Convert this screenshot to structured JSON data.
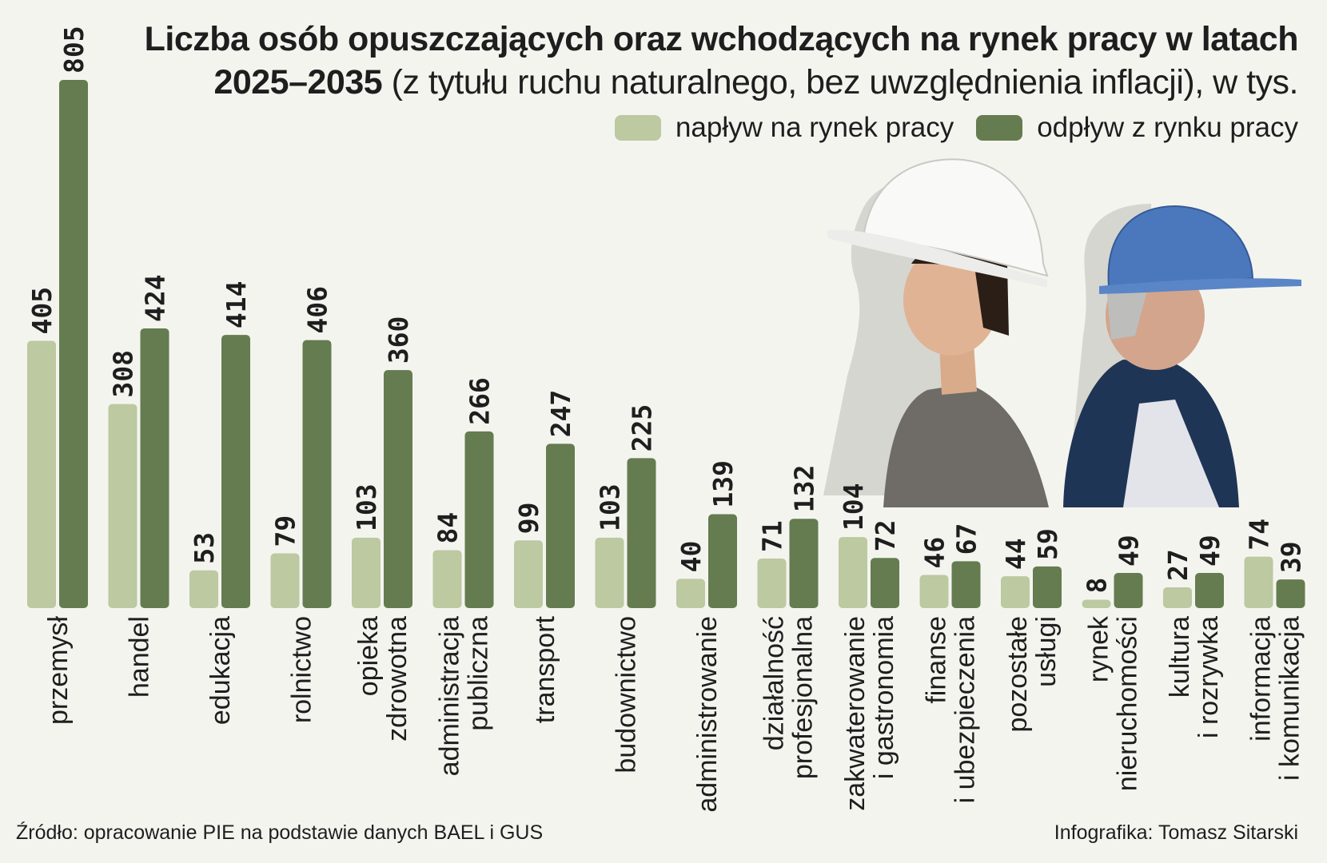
{
  "title": {
    "bold": "Liczba osób opuszczających oraz wchodzących na rynek pracy w latach 2025–2035",
    "normal": "(z tytułu ruchu naturalnego, bez uwzględnienia inflacji), w tys."
  },
  "legend": {
    "inflow": "napływ na rynek pracy",
    "outflow": "odpływ z rynku pracy"
  },
  "colors": {
    "inflow": "#bcc9a1",
    "outflow": "#647c4f",
    "text": "#1e1e1e",
    "background": "#f4f4ef"
  },
  "source": "Źródło: opracowanie PIE na podstawie danych BAEL i GUS",
  "credit": "Infografika: Tomasz Sitarski",
  "chart_data": {
    "type": "bar",
    "title": "Liczba osób opuszczających oraz wchodzących na rynek pracy w latach 2025–2035 (z tytułu ruchu naturalnego, bez uwzględnienia inflacji), w tys.",
    "xlabel": "",
    "ylabel": "",
    "ylim": [
      0,
      805
    ],
    "grid": false,
    "legend_position": "top-right",
    "categories": [
      [
        "przemysł"
      ],
      [
        "handel"
      ],
      [
        "edukacja"
      ],
      [
        "rolnictwo"
      ],
      [
        "opieka",
        "zdrowotna"
      ],
      [
        "administracja",
        "publiczna"
      ],
      [
        "transport"
      ],
      [
        "budownictwo"
      ],
      [
        "administrowanie"
      ],
      [
        "działalność",
        "profesjonalna"
      ],
      [
        "zakwaterowanie",
        "i gastronomia"
      ],
      [
        "finanse",
        "i ubezpieczenia"
      ],
      [
        "pozostałe",
        "usługi"
      ],
      [
        "rynek",
        "nieruchomości"
      ],
      [
        "kultura",
        "i rozrywka"
      ],
      [
        "informacja",
        "i komunikacja"
      ]
    ],
    "series": [
      {
        "name": "napływ na rynek pracy",
        "key": "inflow",
        "values": [
          405,
          308,
          53,
          79,
          103,
          84,
          99,
          103,
          40,
          71,
          104,
          46,
          44,
          8,
          27,
          74
        ]
      },
      {
        "name": "odpływ z rynku pracy",
        "key": "outflow",
        "values": [
          805,
          424,
          414,
          406,
          360,
          266,
          247,
          225,
          139,
          132,
          72,
          67,
          59,
          49,
          49,
          39
        ]
      }
    ]
  }
}
